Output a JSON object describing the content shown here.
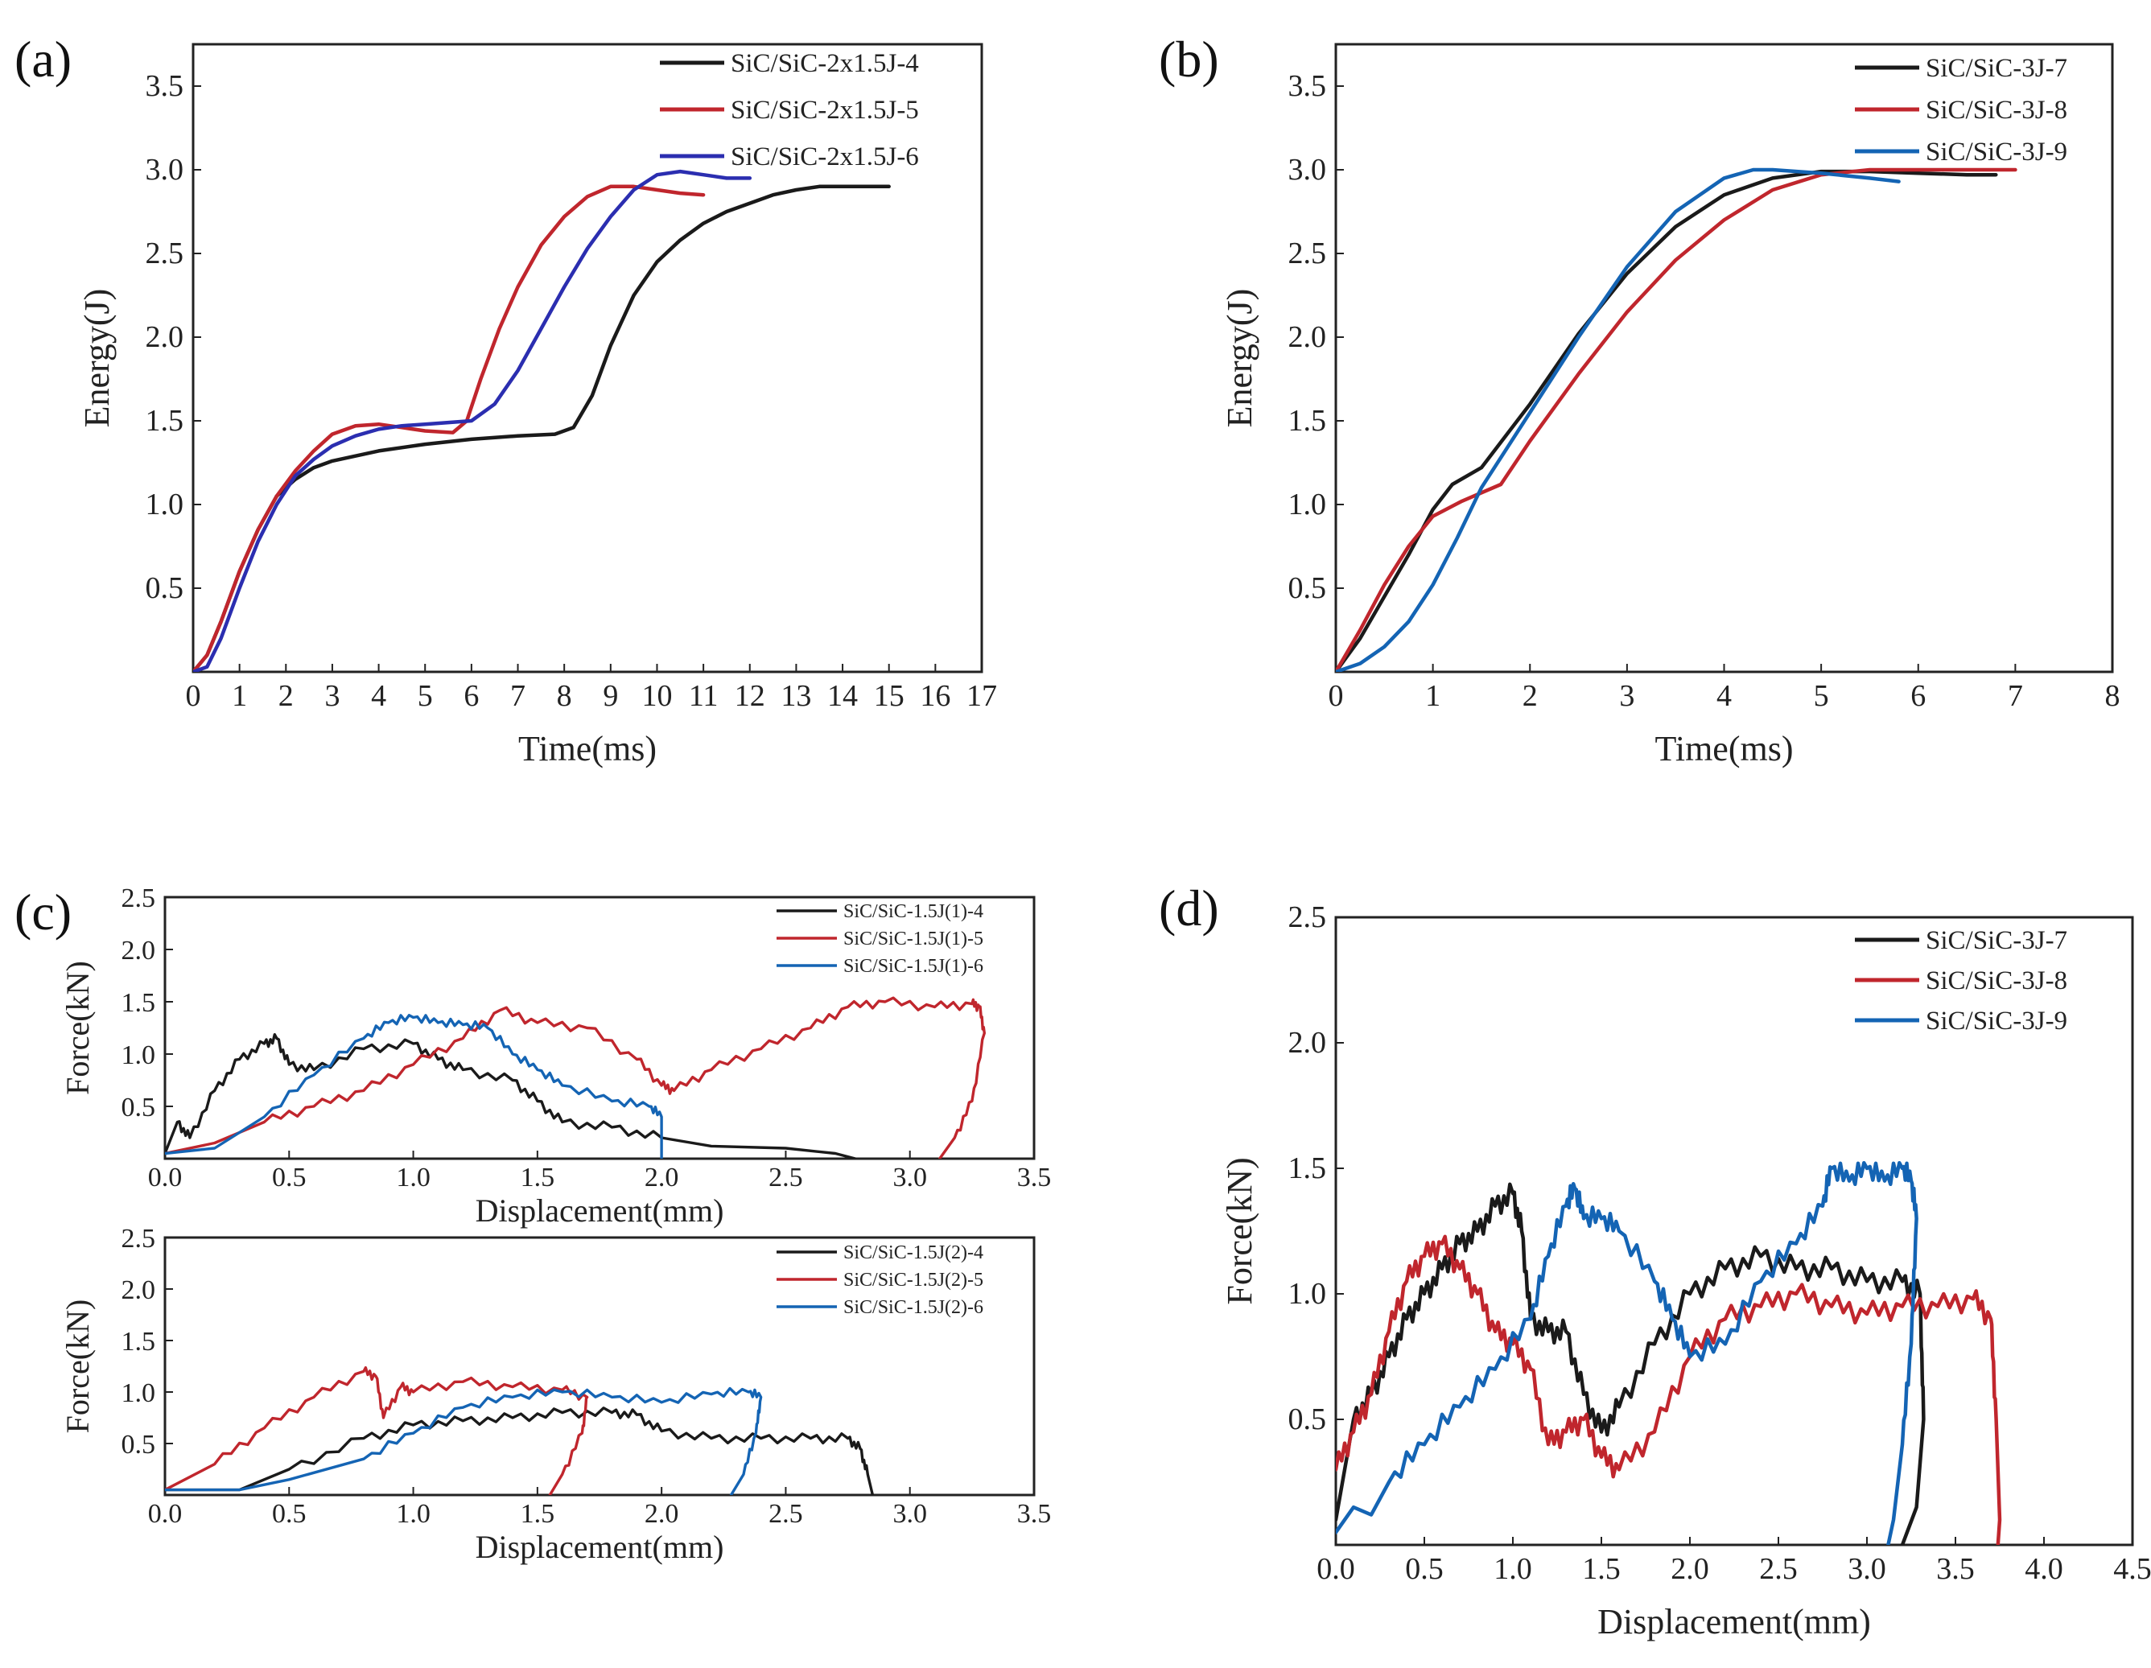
{
  "figure": {
    "colors": {
      "black": "#1a1a1a",
      "red": "#c0262d",
      "navy": "#2b2eb0",
      "blue": "#1464b4"
    }
  },
  "chart_data": [
    {
      "id": "a",
      "type": "line",
      "panel_label": "(a)",
      "xlabel": "Time(ms)",
      "ylabel": "Energy(J)",
      "xlim": [
        0,
        17
      ],
      "ylim": [
        0,
        3.75
      ],
      "xticks": [
        "0",
        "1",
        "2",
        "3",
        "4",
        "5",
        "6",
        "7",
        "8",
        "9",
        "10",
        "11",
        "12",
        "13",
        "14",
        "15",
        "16",
        "17"
      ],
      "yticks": [
        "0.5",
        "1.0",
        "1.5",
        "2.0",
        "2.5",
        "3.0",
        "3.5"
      ],
      "legend_position": "top-right",
      "series": [
        {
          "name": "SiC/SiC-2x1.5J-4",
          "color": "#1a1a1a",
          "x": [
            0,
            0.3,
            0.6,
            1.0,
            1.4,
            1.8,
            2.2,
            2.6,
            3.0,
            4.0,
            5.0,
            6.0,
            7.0,
            7.8,
            8.2,
            8.6,
            9.0,
            9.5,
            10.0,
            10.5,
            11.0,
            11.5,
            12.0,
            12.5,
            13.0,
            13.5,
            14.0,
            14.5,
            15.0
          ],
          "y": [
            0,
            0.1,
            0.3,
            0.6,
            0.85,
            1.05,
            1.15,
            1.22,
            1.26,
            1.32,
            1.36,
            1.39,
            1.41,
            1.42,
            1.46,
            1.65,
            1.95,
            2.25,
            2.45,
            2.58,
            2.68,
            2.75,
            2.8,
            2.85,
            2.88,
            2.9,
            2.9,
            2.9,
            2.9
          ]
        },
        {
          "name": "SiC/SiC-2x1.5J-5",
          "color": "#c0262d",
          "x": [
            0,
            0.3,
            0.6,
            1.0,
            1.4,
            1.8,
            2.2,
            2.6,
            3.0,
            3.5,
            4.0,
            4.5,
            5.0,
            5.6,
            5.9,
            6.2,
            6.6,
            7.0,
            7.5,
            8.0,
            8.5,
            9.0,
            9.5,
            10.0,
            10.5,
            11.0
          ],
          "y": [
            0,
            0.1,
            0.3,
            0.6,
            0.85,
            1.05,
            1.2,
            1.32,
            1.42,
            1.47,
            1.48,
            1.46,
            1.44,
            1.43,
            1.5,
            1.75,
            2.05,
            2.3,
            2.55,
            2.72,
            2.84,
            2.9,
            2.9,
            2.88,
            2.86,
            2.85
          ]
        },
        {
          "name": "SiC/SiC-2x1.5J-6",
          "color": "#2b2eb0",
          "x": [
            0,
            0.3,
            0.6,
            1.0,
            1.4,
            1.8,
            2.2,
            2.6,
            3.0,
            3.5,
            4.0,
            4.5,
            5.0,
            5.5,
            6.0,
            6.5,
            7.0,
            7.5,
            8.0,
            8.5,
            9.0,
            9.5,
            10.0,
            10.5,
            11.0,
            11.5,
            12.0
          ],
          "y": [
            0,
            0.03,
            0.2,
            0.5,
            0.78,
            1.0,
            1.17,
            1.27,
            1.35,
            1.41,
            1.45,
            1.47,
            1.48,
            1.49,
            1.5,
            1.6,
            1.8,
            2.05,
            2.3,
            2.53,
            2.72,
            2.88,
            2.97,
            2.99,
            2.97,
            2.95,
            2.95
          ]
        }
      ]
    },
    {
      "id": "b",
      "type": "line",
      "panel_label": "(b)",
      "xlabel": "Time(ms)",
      "ylabel": "Energy(J)",
      "xlim": [
        0,
        8
      ],
      "ylim": [
        0,
        3.75
      ],
      "xticks": [
        "0",
        "1",
        "2",
        "3",
        "4",
        "5",
        "6",
        "7",
        "8"
      ],
      "yticks": [
        "0.5",
        "1.0",
        "1.5",
        "2.0",
        "2.5",
        "3.0",
        "3.5"
      ],
      "legend_position": "top-right",
      "series": [
        {
          "name": "SiC/SiC-3J-7",
          "color": "#1a1a1a",
          "x": [
            0,
            0.25,
            0.5,
            0.75,
            1.0,
            1.2,
            1.5,
            2.0,
            2.5,
            3.0,
            3.5,
            4.0,
            4.5,
            5.0,
            5.5,
            6.0,
            6.5,
            6.8
          ],
          "y": [
            0,
            0.2,
            0.45,
            0.7,
            0.97,
            1.12,
            1.22,
            1.6,
            2.02,
            2.38,
            2.66,
            2.85,
            2.95,
            2.99,
            2.99,
            2.98,
            2.97,
            2.97
          ]
        },
        {
          "name": "SiC/SiC-3J-8",
          "color": "#c0262d",
          "x": [
            0,
            0.25,
            0.5,
            0.75,
            1.0,
            1.3,
            1.7,
            2.0,
            2.5,
            3.0,
            3.5,
            4.0,
            4.5,
            5.0,
            5.5,
            6.0,
            6.5,
            7.0
          ],
          "y": [
            0,
            0.25,
            0.52,
            0.75,
            0.93,
            1.02,
            1.12,
            1.38,
            1.78,
            2.15,
            2.46,
            2.7,
            2.88,
            2.97,
            3.0,
            3.0,
            3.0,
            3.0
          ]
        },
        {
          "name": "SiC/SiC-3J-9",
          "color": "#1464b4",
          "x": [
            0,
            0.25,
            0.5,
            0.75,
            1.0,
            1.25,
            1.5,
            2.0,
            2.5,
            3.0,
            3.5,
            4.0,
            4.3,
            4.5,
            5.0,
            5.5,
            5.8
          ],
          "y": [
            0,
            0.05,
            0.15,
            0.3,
            0.52,
            0.8,
            1.1,
            1.55,
            2.0,
            2.42,
            2.75,
            2.95,
            3.0,
            3.0,
            2.98,
            2.95,
            2.93
          ]
        }
      ]
    },
    {
      "id": "c1",
      "type": "line",
      "panel_label": "(c)",
      "xlabel": "Displacement(mm)",
      "ylabel": "Force(kN)",
      "xlim": [
        0,
        3.5
      ],
      "ylim": [
        0,
        2.5
      ],
      "xticks": [
        "0.0",
        "0.5",
        "1.0",
        "1.5",
        "2.0",
        "2.5",
        "3.0",
        "3.5"
      ],
      "yticks": [
        "0.5",
        "1.0",
        "1.5",
        "2.0",
        "2.5"
      ],
      "legend_position": "top-right",
      "series": [
        {
          "name": "SiC/SiC-1.5J(1)-4",
          "color": "#1a1a1a",
          "x": [
            0,
            0.05,
            0.1,
            0.2,
            0.3,
            0.4,
            0.45,
            0.5,
            0.6,
            0.8,
            1.0,
            1.1,
            1.2,
            1.4,
            1.5,
            1.6,
            1.8,
            2.0,
            2.2,
            2.5,
            2.7,
            2.78
          ],
          "y": [
            0.05,
            0.35,
            0.2,
            0.65,
            0.95,
            1.1,
            1.15,
            0.9,
            0.85,
            1.05,
            1.1,
            0.95,
            0.85,
            0.75,
            0.55,
            0.35,
            0.3,
            0.2,
            0.12,
            0.1,
            0.05,
            0.0
          ]
        },
        {
          "name": "SiC/SiC-1.5J(1)-5",
          "color": "#c0262d",
          "x": [
            0,
            0.2,
            0.4,
            0.6,
            0.8,
            1.0,
            1.2,
            1.35,
            1.5,
            1.7,
            1.9,
            2.0,
            2.05,
            2.2,
            2.4,
            2.6,
            2.75,
            2.9,
            3.1,
            3.25,
            3.28,
            3.3,
            3.25,
            3.18,
            3.12
          ],
          "y": [
            0.05,
            0.15,
            0.35,
            0.5,
            0.65,
            0.9,
            1.15,
            1.42,
            1.3,
            1.25,
            0.95,
            0.7,
            0.65,
            0.85,
            1.05,
            1.25,
            1.45,
            1.5,
            1.45,
            1.48,
            1.45,
            1.2,
            0.55,
            0.2,
            0.0
          ]
        },
        {
          "name": "SiC/SiC-1.5J(1)-6",
          "color": "#1464b4",
          "x": [
            0,
            0.2,
            0.4,
            0.6,
            0.8,
            0.9,
            1.0,
            1.1,
            1.2,
            1.3,
            1.4,
            1.5,
            1.6,
            1.8,
            1.95,
            2.0,
            2.0
          ],
          "y": [
            0.05,
            0.1,
            0.4,
            0.8,
            1.15,
            1.3,
            1.35,
            1.3,
            1.28,
            1.25,
            1.0,
            0.85,
            0.7,
            0.55,
            0.5,
            0.4,
            0.0
          ]
        }
      ]
    },
    {
      "id": "c2",
      "type": "line",
      "panel_label": "",
      "xlabel": "Displacement(mm)",
      "ylabel": "Force(kN)",
      "xlim": [
        0,
        3.5
      ],
      "ylim": [
        0,
        2.5
      ],
      "xticks": [
        "0.0",
        "0.5",
        "1.0",
        "1.5",
        "2.0",
        "2.5",
        "3.0",
        "3.5"
      ],
      "yticks": [
        "0.5",
        "1.0",
        "1.5",
        "2.0",
        "2.5"
      ],
      "legend_position": "top-right",
      "series": [
        {
          "name": "SiC/SiC-1.5J(2)-4",
          "color": "#1a1a1a",
          "x": [
            0,
            0.3,
            0.5,
            0.8,
            1.0,
            1.2,
            1.4,
            1.6,
            1.8,
            1.9,
            2.0,
            2.2,
            2.4,
            2.6,
            2.75,
            2.8,
            2.83,
            2.85
          ],
          "y": [
            0.05,
            0.05,
            0.25,
            0.55,
            0.68,
            0.72,
            0.75,
            0.8,
            0.8,
            0.78,
            0.62,
            0.55,
            0.55,
            0.55,
            0.55,
            0.45,
            0.2,
            0.0
          ]
        },
        {
          "name": "SiC/SiC-1.5J(2)-5",
          "color": "#c0262d",
          "x": [
            0,
            0.2,
            0.4,
            0.6,
            0.8,
            0.85,
            0.88,
            0.95,
            1.0,
            1.2,
            1.4,
            1.6,
            1.7,
            1.68,
            1.6,
            1.55
          ],
          "y": [
            0.05,
            0.3,
            0.65,
            0.95,
            1.2,
            1.15,
            0.75,
            1.05,
            1.0,
            1.1,
            1.05,
            1.02,
            0.95,
            0.6,
            0.2,
            0.0
          ]
        },
        {
          "name": "SiC/SiC-1.5J(2)-6",
          "color": "#1464b4",
          "x": [
            0,
            0.3,
            0.5,
            0.8,
            1.0,
            1.2,
            1.4,
            1.6,
            1.8,
            2.0,
            2.2,
            2.35,
            2.4,
            2.38,
            2.33,
            2.28
          ],
          "y": [
            0.05,
            0.05,
            0.15,
            0.35,
            0.6,
            0.85,
            0.95,
            1.0,
            0.95,
            0.9,
            0.98,
            1.0,
            0.95,
            0.6,
            0.2,
            0.0
          ]
        }
      ]
    },
    {
      "id": "d",
      "type": "line",
      "panel_label": "(d)",
      "xlabel": "Displacement(mm)",
      "ylabel": "Force(kN)",
      "xlim": [
        0,
        4.5
      ],
      "ylim": [
        0,
        2.5
      ],
      "xticks": [
        "0.0",
        "0.5",
        "1.0",
        "1.5",
        "2.0",
        "2.5",
        "3.0",
        "3.5",
        "4.0",
        "4.5"
      ],
      "yticks": [
        "0.5",
        "1.0",
        "1.5",
        "2.0",
        "2.5"
      ],
      "legend_position": "top-right",
      "series": [
        {
          "name": "SiC/SiC-3J-7",
          "color": "#1a1a1a",
          "x": [
            0,
            0.1,
            0.2,
            0.3,
            0.4,
            0.5,
            0.6,
            0.7,
            0.8,
            0.9,
            1.0,
            1.05,
            1.1,
            1.2,
            1.3,
            1.4,
            1.5,
            1.6,
            1.8,
            2.0,
            2.2,
            2.4,
            2.6,
            2.8,
            3.0,
            3.2,
            3.3,
            3.32,
            3.28,
            3.2
          ],
          "y": [
            0.1,
            0.5,
            0.6,
            0.75,
            0.9,
            1.0,
            1.1,
            1.2,
            1.25,
            1.35,
            1.4,
            1.25,
            0.9,
            0.85,
            0.85,
            0.6,
            0.45,
            0.55,
            0.8,
            1.0,
            1.1,
            1.15,
            1.1,
            1.1,
            1.05,
            1.05,
            1.0,
            0.5,
            0.15,
            0.0
          ]
        },
        {
          "name": "SiC/SiC-3J-8",
          "color": "#c0262d",
          "x": [
            0,
            0.1,
            0.2,
            0.3,
            0.4,
            0.5,
            0.6,
            0.7,
            0.8,
            0.9,
            1.0,
            1.1,
            1.2,
            1.3,
            1.4,
            1.5,
            1.6,
            1.8,
            2.0,
            2.2,
            2.4,
            2.6,
            2.8,
            3.0,
            3.2,
            3.4,
            3.6,
            3.7,
            3.73,
            3.75,
            3.74
          ],
          "y": [
            0.3,
            0.45,
            0.6,
            0.85,
            1.05,
            1.15,
            1.2,
            1.1,
            1.0,
            0.85,
            0.8,
            0.7,
            0.4,
            0.45,
            0.5,
            0.35,
            0.3,
            0.45,
            0.75,
            0.9,
            0.95,
            1.0,
            0.95,
            0.92,
            0.95,
            0.95,
            0.98,
            0.9,
            0.5,
            0.1,
            0.0
          ]
        },
        {
          "name": "SiC/SiC-3J-9",
          "color": "#1464b4",
          "x": [
            0,
            0.1,
            0.2,
            0.3,
            0.5,
            0.7,
            0.9,
            1.1,
            1.2,
            1.3,
            1.35,
            1.4,
            1.5,
            1.6,
            1.8,
            1.9,
            2.0,
            2.2,
            2.4,
            2.6,
            2.75,
            2.8,
            2.9,
            3.0,
            3.1,
            3.2,
            3.25,
            3.28,
            3.25,
            3.2,
            3.15,
            3.12
          ],
          "y": [
            0.05,
            0.15,
            0.12,
            0.25,
            0.4,
            0.55,
            0.7,
            0.9,
            1.15,
            1.35,
            1.42,
            1.3,
            1.3,
            1.25,
            1.05,
            0.9,
            0.75,
            0.8,
            1.05,
            1.2,
            1.35,
            1.5,
            1.45,
            1.5,
            1.45,
            1.5,
            1.45,
            1.3,
            0.8,
            0.4,
            0.1,
            0.0
          ]
        }
      ]
    }
  ]
}
